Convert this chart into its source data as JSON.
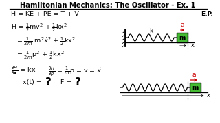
{
  "title": "Hamiltonian Mechanics: The Oscillator - Ex. 1",
  "bg_color": "#ffffff",
  "text_color": "#000000",
  "red_color": "#cc0000",
  "green_box": "#44bb33",
  "line1": "H = KE + PE = T + V",
  "ep_label": "E.P.",
  "k_label": "k",
  "m_label": "m",
  "a_label": "a",
  "x_label": "x",
  "xt_label": "x(t) = ",
  "f_label": "F = ",
  "q_label": "?"
}
